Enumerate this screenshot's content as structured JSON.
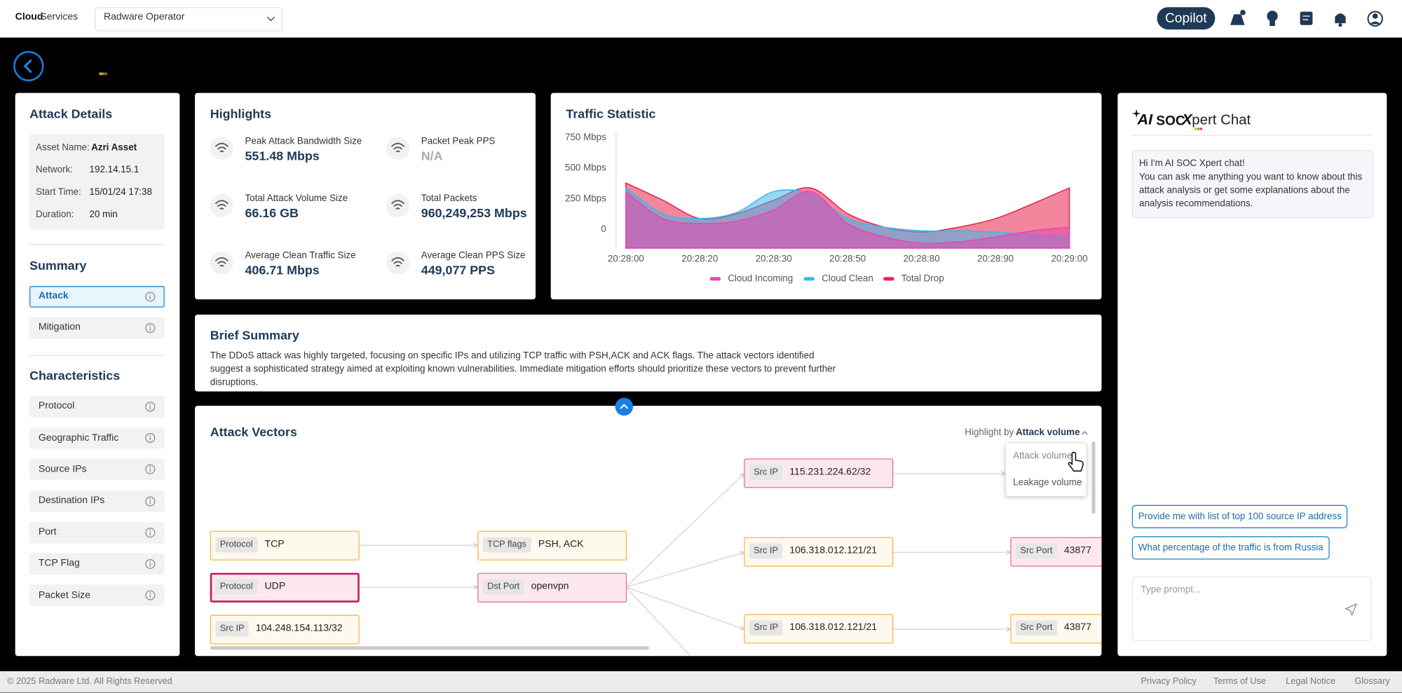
{
  "header": {
    "brand_bold": "Cloud",
    "brand": "Services",
    "operator": "Radware Operator",
    "copilot": "Copilot"
  },
  "attack_details": {
    "title": "Attack Details",
    "fields": [
      {
        "label": "Asset Name:",
        "value": "Azri Asset"
      },
      {
        "label": "Network:",
        "value": "192.14.15.1"
      },
      {
        "label": "Start Time:",
        "value": "15/01/24 17:38"
      },
      {
        "label": "Duration:",
        "value": "20 min"
      }
    ]
  },
  "summary": {
    "title": "Summary",
    "items": [
      "Attack",
      "Mitigation"
    ]
  },
  "characteristics": {
    "title": "Characteristics",
    "items": [
      "Protocol",
      "Geographic Traffic",
      "Source IPs",
      "Destination IPs",
      "Port",
      "TCP Flag",
      "Packet Size"
    ]
  },
  "highlights": {
    "title": "Highlights",
    "items": [
      {
        "label": "Peak Attack Bandwidth Size",
        "value": "551.48 Mbps"
      },
      {
        "label": "Packet Peak PPS",
        "value": "N/A"
      },
      {
        "label": "Total Attack Volume Size",
        "value": "66.16 GB"
      },
      {
        "label": "Total Packets",
        "value": "960,249,253 Mbps"
      },
      {
        "label": "Average Clean Traffic Size",
        "value": "406.71 Mbps"
      },
      {
        "label": "Average Clean PPS Size",
        "value": "449,077 PPS"
      }
    ]
  },
  "chart_data": {
    "type": "area",
    "title": "Traffic Statistic",
    "categories": [
      "20:28:00",
      null,
      "20:28:20",
      null,
      "20:28:30",
      null,
      "20:28:50",
      null,
      "20:28:80",
      null,
      "20:28:90",
      null,
      "20:29:00"
    ],
    "series": [
      {
        "name": "Cloud Incoming",
        "color": "#e447b0",
        "values": [
          310,
          90,
          50,
          70,
          160,
          310,
          50,
          -60,
          -110,
          -100,
          -60,
          -10,
          20
        ]
      },
      {
        "name": "Cloud Clean",
        "color": "#3fb6ea",
        "values": [
          340,
          130,
          90,
          140,
          310,
          290,
          90,
          20,
          -10,
          -10,
          -20,
          -40,
          -60
        ]
      },
      {
        "name": "Total Drop",
        "color": "#e8234a",
        "values": [
          380,
          240,
          90,
          130,
          240,
          340,
          130,
          20,
          -20,
          20,
          90,
          210,
          340
        ]
      }
    ],
    "ylim": [
      -150,
      750
    ],
    "yticks": [
      0,
      {
        "value": 250,
        "label": "250 Mbps"
      },
      {
        "value": 500,
        "label": "500 Mbps"
      },
      {
        "value": 750,
        "label": "750 Mbps"
      }
    ],
    "grid": false,
    "legend": "bottom"
  },
  "brief_summary": {
    "title": "Brief Summary",
    "text": "The DDoS attack was highly targeted, focusing on specific IPs and utilizing TCP traffic with PSH,ACK and ACK flags. The attack vectors identified suggest a sophisticated strategy aimed at exploiting known vulnerabilities. Immediate mitigation efforts should prioritize these vectors to prevent further disruptions."
  },
  "attack_vectors": {
    "title": "Attack Vectors",
    "highlight_label": "Highlight by",
    "highlight_value": "Attack volume",
    "options": [
      "Attack volume",
      "Leakage volume"
    ],
    "nodes": [
      {
        "key": "Protocol",
        "value": "TCP"
      },
      {
        "key": "Protocol",
        "value": "UDP"
      },
      {
        "key": "Src IP",
        "value": "104.248.154.113/32"
      },
      {
        "key": "TCP flags",
        "value": "PSH, ACK"
      },
      {
        "key": "Dst Port",
        "value": "openvpn"
      },
      {
        "key": "Src IP",
        "value": "115.231.224.62/32"
      },
      {
        "key": "Src IP",
        "value": "106.318.012.121/21"
      },
      {
        "key": "Src IP",
        "value": "106.318.012.121/21"
      },
      {
        "key": "Src Port",
        "value": "43877"
      },
      {
        "key": "Src Port",
        "value": "43877"
      }
    ]
  },
  "chat": {
    "title_parts": [
      "AI",
      "SOC",
      "X",
      "pert Chat"
    ],
    "greeting": "Hi I'm AI SOC Xpert chat!",
    "message": "You can ask me anything you want to know about this attack analysis or get some explanations about the analysis recommendations.",
    "suggestions": [
      "Provide me with list of top 100 source IP address",
      "What percentage of the traffic is from Russia"
    ],
    "placeholder": "Type prompt..."
  },
  "footer": {
    "copyright": "© 2025  Radware Ltd. All Rights Reserved",
    "links": [
      "Privacy Policy",
      "Terms of Use",
      "Legal Notice",
      "Glossary"
    ]
  }
}
